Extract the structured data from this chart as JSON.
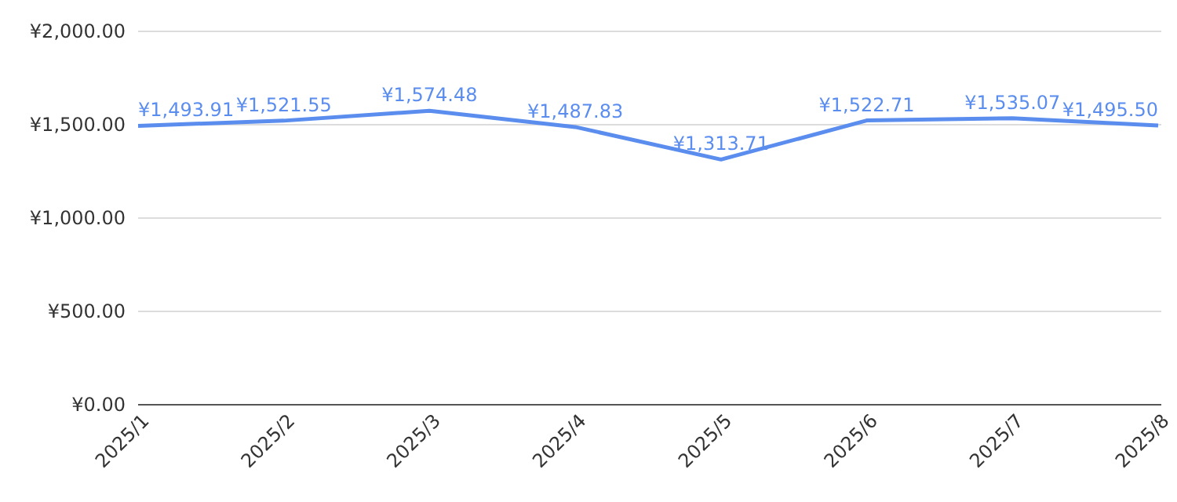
{
  "chart_data": {
    "type": "line",
    "categories": [
      "2025/1",
      "2025/2",
      "2025/3",
      "2025/4",
      "2025/5",
      "2025/6",
      "2025/7",
      "2025/8"
    ],
    "series": [
      {
        "color": "#5b8def",
        "values": [
          1493.91,
          1521.55,
          1574.48,
          1487.83,
          1313.71,
          1522.71,
          1535.07,
          1495.5
        ],
        "value_labels": [
          "¥1,493.91",
          "¥1,521.55",
          "¥1,574.48",
          "¥1,487.83",
          "¥1,313.71",
          "¥1,522.71",
          "¥1,535.07",
          "¥1,495.50"
        ]
      }
    ],
    "ylim": [
      0,
      2000
    ],
    "yticks": [
      {
        "value": 0,
        "label": "¥0.00"
      },
      {
        "value": 500,
        "label": "¥500.00"
      },
      {
        "value": 1000,
        "label": "¥1,000.00"
      },
      {
        "value": 1500,
        "label": "¥1,500.00"
      },
      {
        "value": 2000,
        "label": "¥2,000.00"
      }
    ],
    "grid": "y",
    "marker": "none",
    "line_style": "solid"
  }
}
